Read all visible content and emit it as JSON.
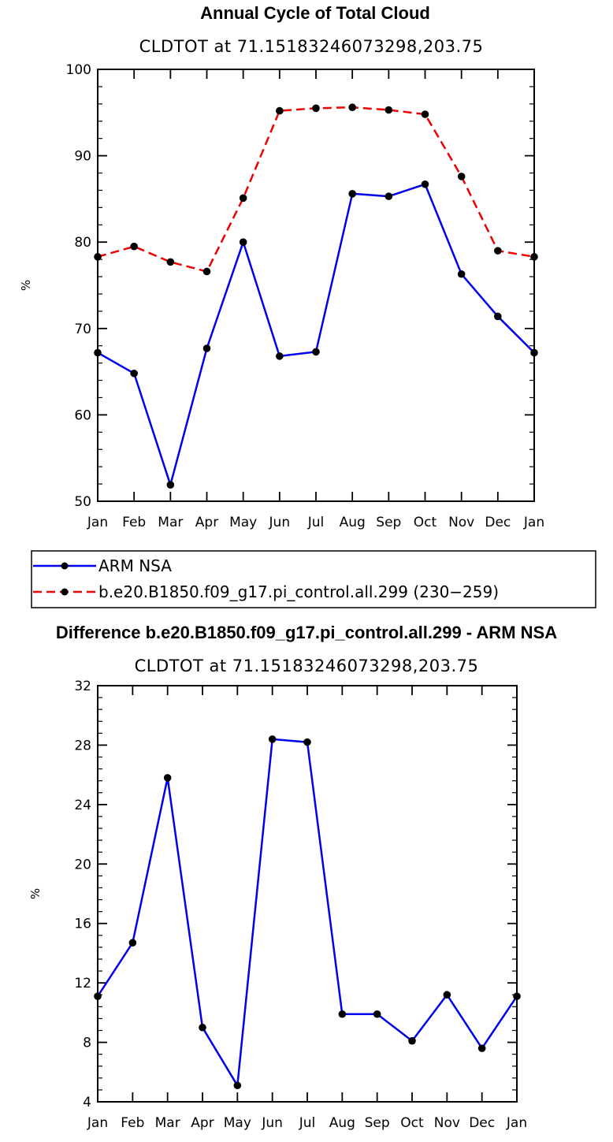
{
  "chart_data": [
    {
      "type": "line",
      "title": "Annual Cycle of Total Cloud",
      "subtitle": "CLDTOT at 71.15183246073298,203.75",
      "xlabel": "",
      "ylabel": "%",
      "categories": [
        "Jan",
        "Feb",
        "Mar",
        "Apr",
        "May",
        "Jun",
        "Jul",
        "Aug",
        "Sep",
        "Oct",
        "Nov",
        "Dec",
        "Jan"
      ],
      "ylim": [
        50,
        100
      ],
      "yticks": [
        50,
        60,
        70,
        80,
        90,
        100
      ],
      "yticklabels": [
        "50",
        "60",
        "70",
        "80",
        "90",
        "100"
      ],
      "series": [
        {
          "name": "ARM NSA",
          "color": "#0000ee",
          "dash": "solid",
          "values": [
            67.2,
            64.8,
            51.9,
            67.7,
            80.0,
            66.8,
            67.3,
            85.6,
            85.3,
            86.7,
            76.3,
            71.4,
            67.2
          ]
        },
        {
          "name": "b.e20.B1850.f09_g17.pi_control.all.299 (230−259)",
          "color": "#ee0000",
          "dash": "dashed",
          "values": [
            78.3,
            79.5,
            77.7,
            76.6,
            85.1,
            95.2,
            95.5,
            95.6,
            95.3,
            94.8,
            87.6,
            79.0,
            78.3
          ]
        }
      ],
      "legend": {
        "position": "below"
      }
    },
    {
      "type": "line",
      "title": "Difference b.e20.B1850.f09_g17.pi_control.all.299 - ARM NSA",
      "subtitle": "CLDTOT at 71.15183246073298,203.75",
      "xlabel": "",
      "ylabel": "%",
      "categories": [
        "Jan",
        "Feb",
        "Mar",
        "Apr",
        "May",
        "Jun",
        "Jul",
        "Aug",
        "Sep",
        "Oct",
        "Nov",
        "Dec",
        "Jan"
      ],
      "ylim": [
        4,
        32
      ],
      "yticks": [
        4,
        8,
        12,
        16,
        20,
        24,
        28,
        32
      ],
      "yticklabels": [
        "4",
        "8",
        "12",
        "16",
        "20",
        "24",
        "28",
        "32"
      ],
      "series": [
        {
          "name": "Difference",
          "color": "#0000ee",
          "dash": "solid",
          "values": [
            11.1,
            14.7,
            25.8,
            9.0,
            5.1,
            28.4,
            28.2,
            9.9,
            9.9,
            8.1,
            11.2,
            7.6,
            11.1
          ]
        }
      ]
    }
  ]
}
